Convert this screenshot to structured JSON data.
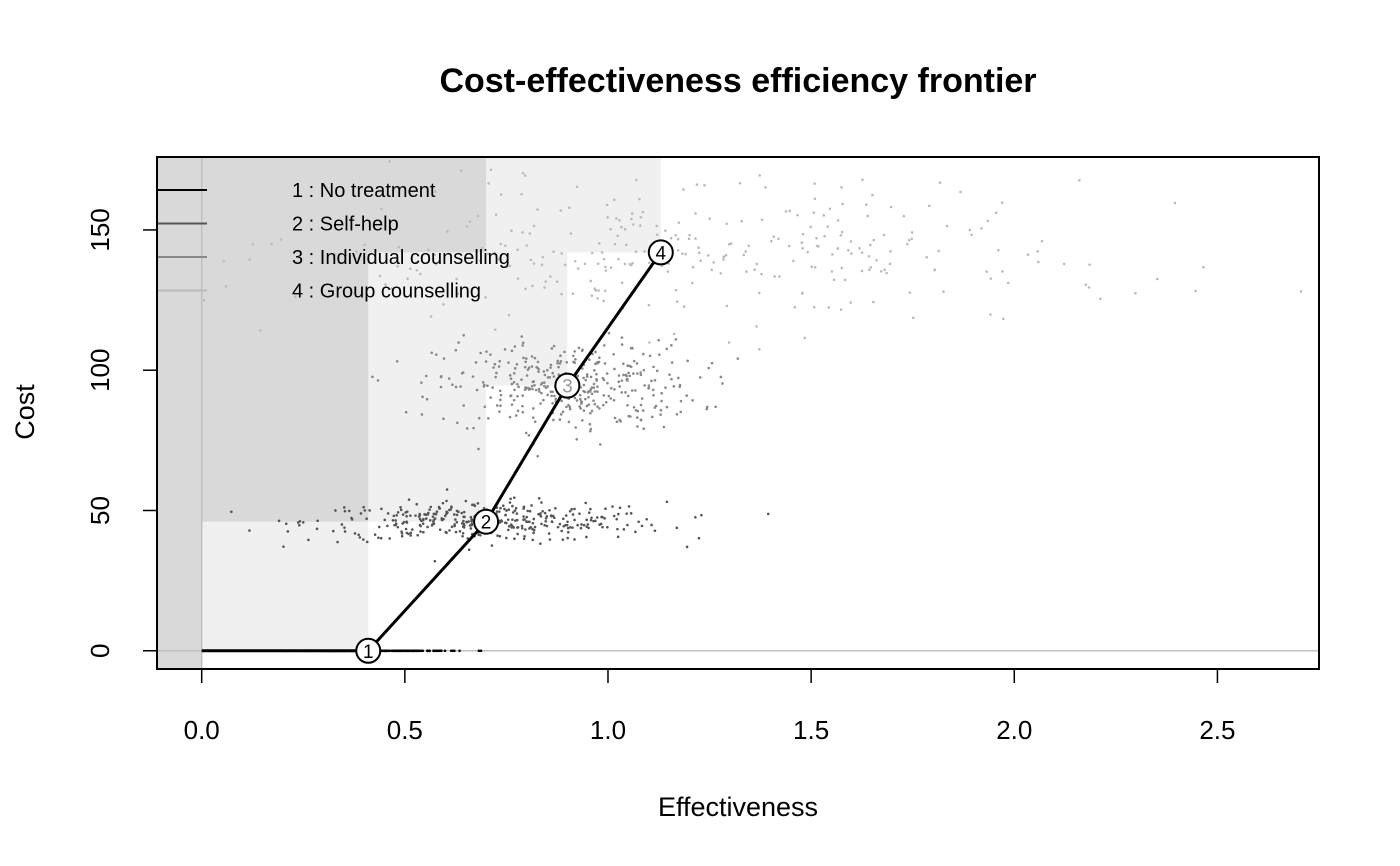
{
  "chart_data": {
    "type": "scatter",
    "title": "Cost-effectiveness efficiency frontier",
    "xlabel": "Effectiveness",
    "ylabel": "Cost",
    "xlim": [
      -0.11,
      2.75
    ],
    "ylim": [
      -6.5,
      176
    ],
    "x_ticks": [
      "0.0",
      "0.5",
      "1.0",
      "1.5",
      "2.0",
      "2.5"
    ],
    "y_ticks": [
      "0",
      "50",
      "100",
      "150"
    ],
    "legend_position": "top-left",
    "legend": [
      {
        "label": "1 : No treatment",
        "color": "#000000"
      },
      {
        "label": "2 : Self-help",
        "color": "#555555"
      },
      {
        "label": "3 : Individual counselling",
        "color": "#888888"
      },
      {
        "label": "4 : Group counselling",
        "color": "#bbbbbb"
      }
    ],
    "series": [
      {
        "id": "1",
        "color": "#000000",
        "mean": [
          0.41,
          0.0
        ],
        "sd": [
          0.1,
          0
        ],
        "n": 300,
        "mark_color": "#000000",
        "mark_text_color": "#000000"
      },
      {
        "id": "2",
        "color": "#555555",
        "mean": [
          0.7,
          46
        ],
        "sd": [
          0.22,
          3.5
        ],
        "n": 380,
        "mark_color": "#000000",
        "mark_text_color": "#000000"
      },
      {
        "id": "3",
        "color": "#888888",
        "mean": [
          0.9,
          94.5
        ],
        "sd": [
          0.16,
          8
        ],
        "n": 380,
        "mark_color": "#000000",
        "mark_text_color": "#999999"
      },
      {
        "id": "4",
        "color": "#bbbbbb",
        "mean": [
          1.13,
          142
        ],
        "sd": [
          0.45,
          13
        ],
        "n": 320,
        "mark_color": "#000000",
        "mark_text_color": "#000000"
      }
    ],
    "frontier": [
      {
        "label": "1",
        "x": 0.41,
        "y": 0.0
      },
      {
        "label": "2",
        "x": 0.7,
        "y": 46
      },
      {
        "label": "3",
        "x": 0.9,
        "y": 94.5
      },
      {
        "label": "4",
        "x": 1.13,
        "y": 142
      }
    ],
    "dominated_regions": [
      {
        "x0": -0.11,
        "x1": 0.41,
        "y0": 0.0,
        "y1": 176,
        "color": "#f0f0f0"
      },
      {
        "x0": -0.11,
        "x1": 0.7,
        "y0": 46,
        "y1": 176,
        "color": "#f0f0f0"
      },
      {
        "x0": -0.11,
        "x1": 0.9,
        "y0": 94.5,
        "y1": 176,
        "color": "#f0f0f0"
      },
      {
        "x0": -0.11,
        "x1": 1.13,
        "y0": 142,
        "y1": 176,
        "color": "#f0f0f0"
      },
      {
        "x0": -0.11,
        "x1": 0.41,
        "y0": 46,
        "y1": 176,
        "color": "#d9d9d9"
      },
      {
        "x0": -0.11,
        "x1": 0.7,
        "y0": 142,
        "y1": 176,
        "color": "#d9d9d9"
      },
      {
        "x0": -0.11,
        "x1": 0.0,
        "y0": -6.5,
        "y1": 176,
        "color": "#d9d9d9"
      }
    ],
    "reference_lines": {
      "x0": true,
      "y0": true,
      "color": "#c0c0c0"
    }
  }
}
